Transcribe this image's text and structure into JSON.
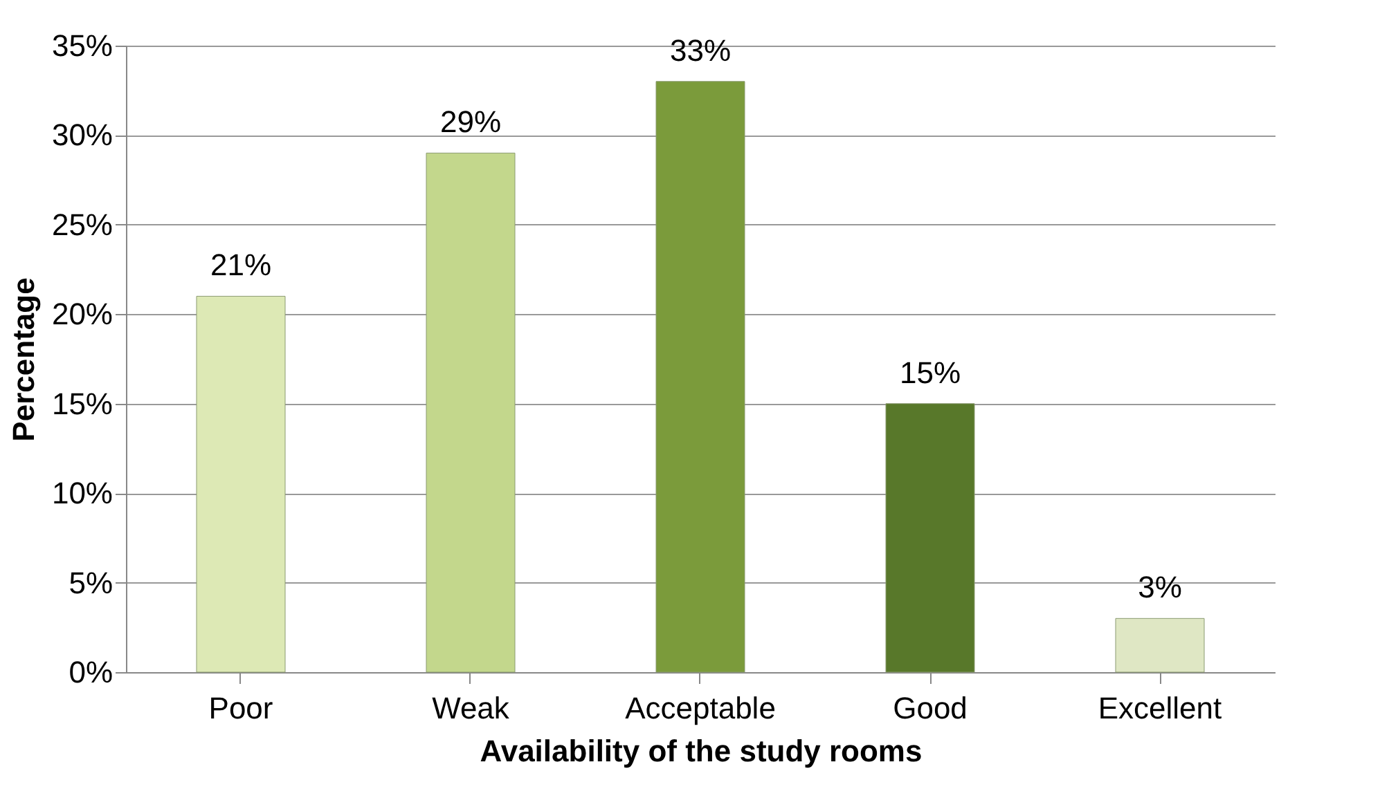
{
  "chart_data": {
    "type": "bar",
    "xlabel": "Availability of the study rooms",
    "ylabel": "Percentage",
    "categories": [
      "Poor",
      "Weak",
      "Acceptable",
      "Good",
      "Excellent"
    ],
    "values": [
      21,
      29,
      33,
      15,
      3
    ],
    "value_labels": [
      "21%",
      "29%",
      "33%",
      "15%",
      "3%"
    ],
    "colors": [
      "#dde9b5",
      "#c3d78c",
      "#7b9b3b",
      "#58782a",
      "#dfe7c4"
    ],
    "ylim": [
      0,
      35
    ],
    "yticks": [
      {
        "value": 0,
        "label": "0%"
      },
      {
        "value": 5,
        "label": "5%"
      },
      {
        "value": 10,
        "label": "10%"
      },
      {
        "value": 15,
        "label": "15%"
      },
      {
        "value": 20,
        "label": "20%"
      },
      {
        "value": 25,
        "label": "25%"
      },
      {
        "value": 30,
        "label": "30%"
      },
      {
        "value": 35,
        "label": "35%"
      }
    ],
    "grid": "y",
    "legend": false
  }
}
